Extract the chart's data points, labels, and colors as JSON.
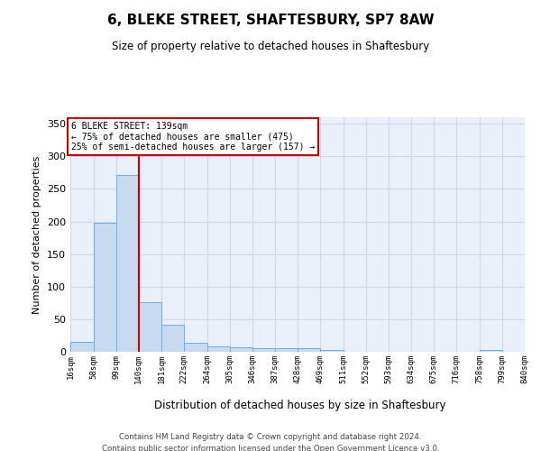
{
  "title": "6, BLEKE STREET, SHAFTESBURY, SP7 8AW",
  "subtitle": "Size of property relative to detached houses in Shaftesbury",
  "xlabel": "Distribution of detached houses by size in Shaftesbury",
  "ylabel": "Number of detached properties",
  "footer_line1": "Contains HM Land Registry data © Crown copyright and database right 2024.",
  "footer_line2": "Contains public sector information licensed under the Open Government Licence v3.0.",
  "bin_edges": [
    16,
    58,
    99,
    140,
    181,
    222,
    264,
    305,
    346,
    387,
    428,
    469,
    511,
    552,
    593,
    634,
    675,
    716,
    758,
    799,
    840
  ],
  "bar_heights": [
    15,
    198,
    272,
    76,
    41,
    14,
    9,
    7,
    5,
    6,
    6,
    3,
    0,
    0,
    0,
    0,
    0,
    0,
    3,
    0
  ],
  "bar_color": "#c8daf0",
  "bar_edge_color": "#6aaee8",
  "grid_color": "#d0d8e8",
  "background_color": "#eaf0fa",
  "vline_x": 140,
  "vline_color": "#cc0000",
  "annotation_line1": "6 BLEKE STREET: 139sqm",
  "annotation_line2": "← 75% of detached houses are smaller (475)",
  "annotation_line3": "25% of semi-detached houses are larger (157) →",
  "annotation_box_edge_color": "#cc0000",
  "annotation_box_face_color": "#ffffff",
  "ylim_max": 360,
  "yticks": [
    0,
    50,
    100,
    150,
    200,
    250,
    300,
    350
  ],
  "tick_labels": [
    "16sqm",
    "58sqm",
    "99sqm",
    "140sqm",
    "181sqm",
    "222sqm",
    "264sqm",
    "305sqm",
    "346sqm",
    "387sqm",
    "428sqm",
    "469sqm",
    "511sqm",
    "552sqm",
    "593sqm",
    "634sqm",
    "675sqm",
    "716sqm",
    "758sqm",
    "799sqm",
    "840sqm"
  ]
}
